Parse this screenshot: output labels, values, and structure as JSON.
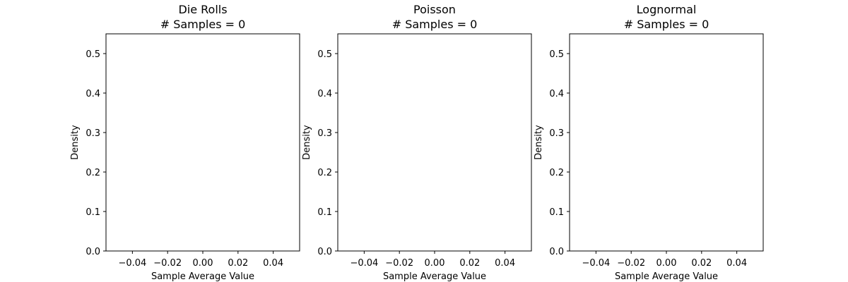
{
  "chart_data": [
    {
      "type": "bar",
      "title": "Die Rolls",
      "subtitle": "# Samples = 0",
      "xlabel": "Sample Average Value",
      "ylabel": "Density",
      "xlim": [
        -0.055,
        0.055
      ],
      "ylim": [
        0,
        0.55
      ],
      "xticks": [
        -0.04,
        -0.02,
        0.0,
        0.02,
        0.04
      ],
      "xtick_labels": [
        "−0.04",
        "−0.02",
        "0.00",
        "0.02",
        "0.04"
      ],
      "yticks": [
        0.0,
        0.1,
        0.2,
        0.3,
        0.4,
        0.5
      ],
      "ytick_labels": [
        "0.0",
        "0.1",
        "0.2",
        "0.3",
        "0.4",
        "0.5"
      ],
      "values": [],
      "grid": false
    },
    {
      "type": "bar",
      "title": "Poisson",
      "subtitle": "# Samples = 0",
      "xlabel": "Sample Average Value",
      "ylabel": "Density",
      "xlim": [
        -0.055,
        0.055
      ],
      "ylim": [
        0,
        0.55
      ],
      "xticks": [
        -0.04,
        -0.02,
        0.0,
        0.02,
        0.04
      ],
      "xtick_labels": [
        "−0.04",
        "−0.02",
        "0.00",
        "0.02",
        "0.04"
      ],
      "yticks": [
        0.0,
        0.1,
        0.2,
        0.3,
        0.4,
        0.5
      ],
      "ytick_labels": [
        "0.0",
        "0.1",
        "0.2",
        "0.3",
        "0.4",
        "0.5"
      ],
      "values": [],
      "grid": false
    },
    {
      "type": "bar",
      "title": "Lognormal",
      "subtitle": "# Samples = 0",
      "xlabel": "Sample Average Value",
      "ylabel": "Density",
      "xlim": [
        -0.055,
        0.055
      ],
      "ylim": [
        0,
        0.55
      ],
      "xticks": [
        -0.04,
        -0.02,
        0.0,
        0.02,
        0.04
      ],
      "xtick_labels": [
        "−0.04",
        "−0.02",
        "0.00",
        "0.02",
        "0.04"
      ],
      "yticks": [
        0.0,
        0.1,
        0.2,
        0.3,
        0.4,
        0.5
      ],
      "ytick_labels": [
        "0.0",
        "0.1",
        "0.2",
        "0.3",
        "0.4",
        "0.5"
      ],
      "values": [],
      "grid": false
    }
  ]
}
